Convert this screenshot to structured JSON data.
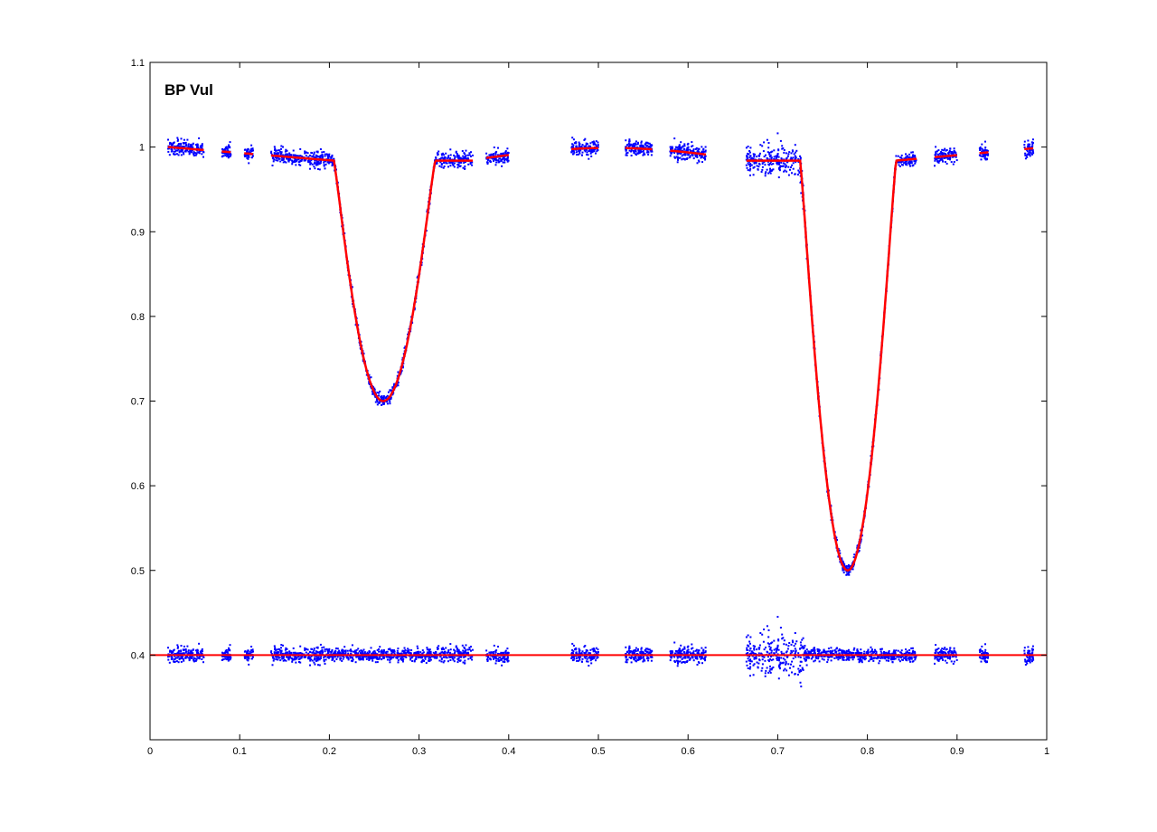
{
  "chart_data": {
    "type": "scatter",
    "title": "BP Vul",
    "xlabel": "",
    "ylabel": "",
    "xlim": [
      0,
      1
    ],
    "ylim": [
      0.3,
      1.1
    ],
    "x_ticks": [
      "0",
      "0.1",
      "0.2",
      "0.3",
      "0.4",
      "0.5",
      "0.6",
      "0.7",
      "0.8",
      "0.9",
      "1"
    ],
    "y_ticks": [
      "0.4",
      "0.5",
      "0.6",
      "0.7",
      "0.8",
      "0.9",
      "1",
      "1.1"
    ],
    "grid": false,
    "model": {
      "baseline_left": 0.984,
      "primary_eclipse": {
        "center": 0.26,
        "min": 0.7,
        "start": 0.205,
        "end": 0.318
      },
      "secondary_eclipse": {
        "center": 0.778,
        "min": 0.5,
        "start": 0.725,
        "end": 0.832
      },
      "residual_offset": 0.4
    },
    "observed_segments": [
      [
        0.02,
        0.06
      ],
      [
        0.08,
        0.09
      ],
      [
        0.105,
        0.115
      ],
      [
        0.135,
        0.36
      ],
      [
        0.375,
        0.4
      ],
      [
        0.47,
        0.5
      ],
      [
        0.53,
        0.56
      ],
      [
        0.58,
        0.62
      ],
      [
        0.665,
        0.855
      ],
      [
        0.875,
        0.9
      ],
      [
        0.925,
        0.935
      ],
      [
        0.975,
        0.985
      ]
    ],
    "series": [
      {
        "name": "",
        "kind": "points",
        "color": "#0000ff"
      },
      {
        "name": "",
        "kind": "line",
        "color": "#ff0000"
      }
    ]
  }
}
